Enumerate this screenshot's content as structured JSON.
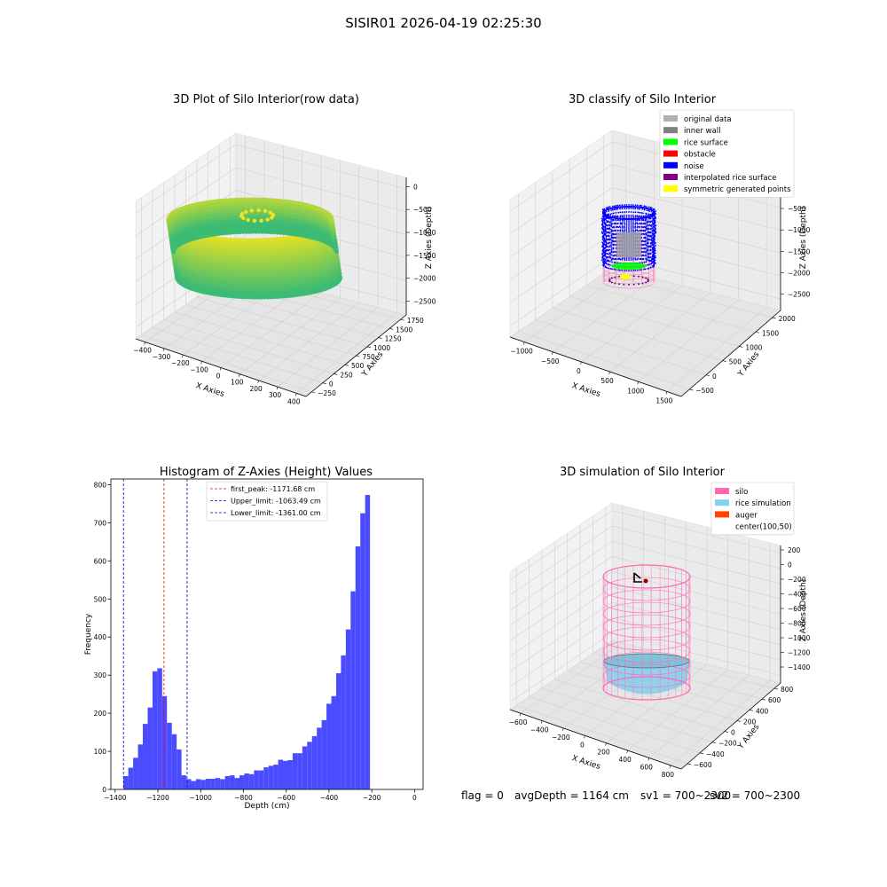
{
  "suptitle": "SISIR01 2026-04-19 02:25:30",
  "footer": {
    "flag": "flag = 0",
    "avg_depth": "avgDepth = 1164 cm",
    "sv1": "sv1 = 700~2300",
    "sv2": "sv2 = 700~2300"
  },
  "colors": {
    "hist_bar": "#4b4bff",
    "peak_line": "#ff0000",
    "limit_line": "#0000cc",
    "silo": "#ff69b4",
    "rice": "#87ceeb",
    "auger": "#ff4500",
    "noise": "#0000ff",
    "inner_wall": "#808080",
    "rice_surface": "#00ff00",
    "viridis_low": "#3cbb75",
    "viridis_high": "#f2e51d"
  },
  "chart_data": [
    {
      "type": "scatter",
      "title": "3D Plot of Silo Interior(row data)",
      "xlabel": "X Axies",
      "ylabel": "Y Axies",
      "zlabel": "Z Axies (Depth)",
      "x_ticks": [
        "−400",
        "−300",
        "−200",
        "−100",
        "0",
        "100",
        "200",
        "300",
        "400"
      ],
      "y_ticks": [
        "−250",
        "0",
        "250",
        "500",
        "750",
        "1000",
        "1250",
        "1500",
        "1750"
      ],
      "z_ticks": [
        "0",
        "−500",
        "−1000",
        "−1500",
        "−2000",
        "−2500"
      ],
      "xlim": [
        -400,
        400
      ],
      "ylim": [
        -250,
        1750
      ],
      "zlim": [
        -2500,
        0
      ]
    },
    {
      "type": "scatter",
      "title": "3D classify of Silo Interior",
      "xlabel": "X Axies",
      "ylabel": "Y Axies",
      "zlabel": "Z Axies (Depth)",
      "x_ticks": [
        "−1000",
        "−500",
        "0",
        "500",
        "1000",
        "1500"
      ],
      "y_ticks": [
        "−500",
        "0",
        "500",
        "1000",
        "1500",
        "2000"
      ],
      "z_ticks": [
        "0",
        "−500",
        "−1000",
        "−1500",
        "−2000",
        "−2500"
      ],
      "legend_position": "top-right",
      "legend": [
        {
          "name": "original data",
          "color": "#b0b0b0"
        },
        {
          "name": "inner wall",
          "color": "#808080"
        },
        {
          "name": "rice surface",
          "color": "#00ff00"
        },
        {
          "name": "obstacle",
          "color": "#ff0000"
        },
        {
          "name": "noise",
          "color": "#0000ff"
        },
        {
          "name": "interpolated rice surface",
          "color": "#800080"
        },
        {
          "name": "symmetric generated points",
          "color": "#ffff00"
        }
      ]
    },
    {
      "type": "bar",
      "title": "Histogram of Z-Axies (Height) Values",
      "xlabel": "Depth (cm)",
      "ylabel": "Frequency",
      "xlim": [
        -1420,
        40
      ],
      "ylim": [
        0,
        815
      ],
      "x_ticks": [
        {
          "v": -1400,
          "t": "−1400"
        },
        {
          "v": -1200,
          "t": "−1200"
        },
        {
          "v": -1000,
          "t": "−1000"
        },
        {
          "v": -800,
          "t": "−800"
        },
        {
          "v": -600,
          "t": "−600"
        },
        {
          "v": -400,
          "t": "−400"
        },
        {
          "v": -200,
          "t": "−200"
        },
        {
          "v": 0,
          "t": "0"
        }
      ],
      "y_ticks": [
        {
          "v": 0,
          "t": "0"
        },
        {
          "v": 100,
          "t": "100"
        },
        {
          "v": 200,
          "t": "200"
        },
        {
          "v": 300,
          "t": "300"
        },
        {
          "v": 400,
          "t": "400"
        },
        {
          "v": 500,
          "t": "500"
        },
        {
          "v": 600,
          "t": "600"
        },
        {
          "v": 700,
          "t": "700"
        },
        {
          "v": 800,
          "t": "800"
        }
      ],
      "bin_start": -1361,
      "bin_width": 22.6,
      "values": [
        35,
        57,
        83,
        118,
        172,
        215,
        310,
        318,
        245,
        175,
        145,
        105,
        37,
        27,
        22,
        27,
        25,
        28,
        28,
        30,
        27,
        35,
        37,
        30,
        37,
        42,
        40,
        50,
        50,
        58,
        62,
        65,
        78,
        75,
        77,
        95,
        95,
        113,
        125,
        140,
        162,
        182,
        225,
        245,
        305,
        352,
        420,
        520,
        638,
        725,
        773
      ],
      "vlines": [
        {
          "x": -1171.68,
          "label": "first_peak: -1171.68 cm",
          "color": "#ff0000"
        },
        {
          "x": -1063.49,
          "label": "Upper_limit: -1063.49 cm",
          "color": "#0000cc"
        },
        {
          "x": -1361.0,
          "label": "Lower_limit: -1361.00 cm",
          "color": "#0000cc"
        }
      ],
      "legend_position": "top-center"
    },
    {
      "type": "scatter",
      "title": "3D simulation of Silo Interior",
      "xlabel": "X Axies",
      "ylabel": "Y Axies",
      "zlabel": "Z Axies (Depth)",
      "x_ticks": [
        "−600",
        "−400",
        "−200",
        "0",
        "200",
        "400",
        "600",
        "800"
      ],
      "y_ticks": [
        "−600",
        "−400",
        "−200",
        "0",
        "200",
        "400",
        "600",
        "800"
      ],
      "z_ticks": [
        "200",
        "0",
        "−200",
        "−400",
        "−600",
        "−800",
        "−1000",
        "−1200",
        "−1400"
      ],
      "legend_position": "top-right",
      "legend": [
        {
          "name": "silo",
          "color": "#ff69b4"
        },
        {
          "name": "rice simulation",
          "color": "#87ceeb"
        },
        {
          "name": "auger",
          "color": "#ff4500"
        },
        {
          "name": "center(100,50)",
          "color": "#ffffff"
        }
      ]
    }
  ]
}
